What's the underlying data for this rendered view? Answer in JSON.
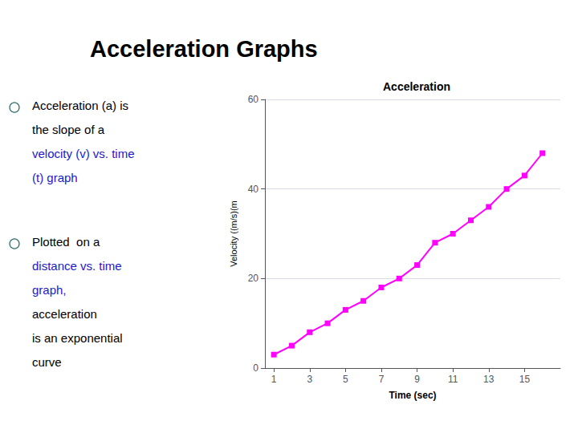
{
  "title": "Acceleration Graphs",
  "annotations": [
    [
      {
        "text": "Acceleration (a) is",
        "color": "#000000"
      },
      {
        "text": "the slope of a",
        "color": "#000000"
      },
      {
        "text": "velocity (v) vs. time",
        "color": "#1a1acd"
      },
      {
        "text": "(t) graph",
        "color": "#1a1acd"
      }
    ],
    [
      {
        "text": "Plotted  on a",
        "color": "#000000"
      },
      {
        "text": "distance vs. time",
        "color": "#1a1acd"
      },
      {
        "text": "graph,",
        "color": "#1a1acd"
      },
      {
        "text": "acceleration",
        "color": "#000000"
      },
      {
        "text": "is an exponential",
        "color": "#000000"
      },
      {
        "text": "curve",
        "color": "#000000"
      }
    ]
  ],
  "chart_data": {
    "type": "line",
    "title": "Acceleration",
    "x_label": "Time (sec)",
    "y_label": "Velocity ((m/s)(m",
    "x": [
      1,
      2,
      3,
      4,
      5,
      6,
      7,
      8,
      9,
      10,
      11,
      12,
      13,
      14,
      15,
      16
    ],
    "values": [
      3,
      5,
      8,
      10,
      13,
      15,
      18,
      20,
      23,
      28,
      30,
      33,
      36,
      40,
      43,
      48
    ],
    "color": "#ff00ff",
    "marker": "square",
    "xlim": [
      0.5,
      17
    ],
    "xticks": [
      1,
      3,
      5,
      7,
      9,
      11,
      13,
      15
    ],
    "ylim": [
      0,
      60
    ],
    "yticks": [
      0,
      20,
      40,
      60
    ],
    "grid": true
  }
}
